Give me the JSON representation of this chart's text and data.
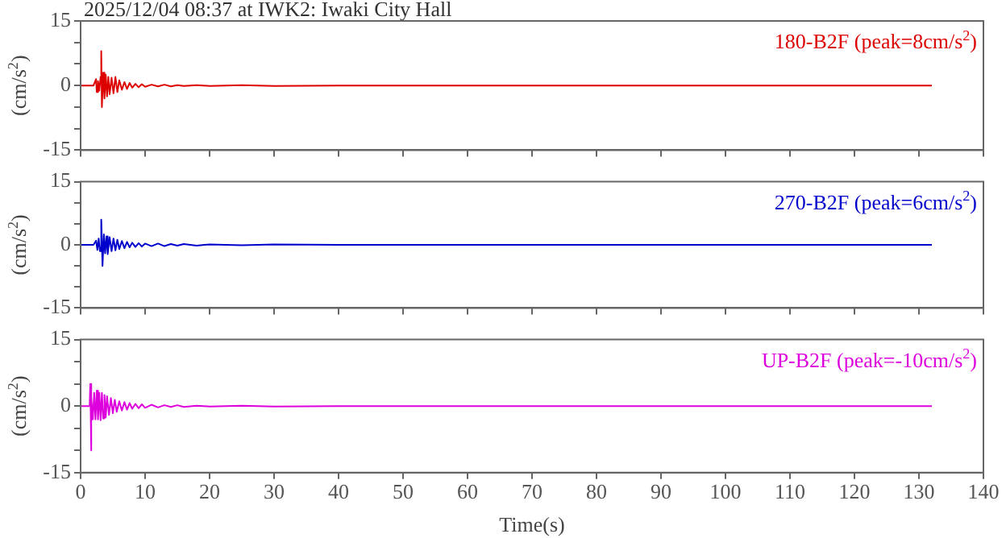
{
  "chart_data": [
    {
      "type": "line",
      "title": "2025/12/04 08:37 at IWK2: Iwaki City Hall",
      "ylabel": "(cm/s$^{2}$)",
      "annotations": [
        "180-B2F (peak=8cm/s$^{2}$)"
      ],
      "tick_labels": "y",
      "xlim": [
        0,
        140
      ],
      "xticks": [
        0,
        10,
        20,
        30,
        40,
        50,
        60,
        70,
        80,
        90,
        100,
        110,
        120,
        130,
        140
      ],
      "ylim": [
        -15,
        15
      ],
      "yticks": [
        -15,
        {
          "value": -10,
          "label": null
        },
        {
          "value": -5,
          "label": null
        },
        0,
        {
          "value": 5,
          "label": null
        },
        {
          "value": 10,
          "label": null
        },
        15
      ],
      "grid": false,
      "legend": false,
      "marker": "none",
      "line_style": "solid",
      "series": [
        {
          "color": "#dd0000",
          "x": [
            0,
            1,
            2,
            2.4,
            2.5,
            2.7,
            2.9,
            3.1,
            3.2,
            3.3,
            3.5,
            3.7,
            3.9,
            4.1,
            4.3,
            4.5,
            4.8,
            5.1,
            5.4,
            5.7,
            6,
            6.4,
            6.8,
            7.2,
            7.6,
            8,
            8.5,
            9,
            9.5,
            10,
            11,
            12,
            13,
            14,
            15,
            16,
            18,
            20,
            25,
            30,
            40,
            132
          ],
          "values": [
            0,
            0,
            0,
            1.5,
            -1.5,
            1,
            -1.2,
            2,
            8,
            -5,
            3,
            -3,
            2.5,
            -2.5,
            2,
            -2,
            1.8,
            -1.8,
            2,
            -1.5,
            1.2,
            -1,
            0.8,
            -0.8,
            0.6,
            -0.5,
            0.4,
            -0.4,
            0.3,
            -0.3,
            0.2,
            -0.2,
            0.2,
            -0.2,
            0.1,
            -0.1,
            0.1,
            -0.1,
            0.1,
            -0.1,
            0,
            0
          ]
        }
      ]
    },
    {
      "type": "line",
      "ylabel": "(cm/s$^{2}$)",
      "annotations": [
        "270-B2F (peak=6cm/s$^{2}$)"
      ],
      "tick_labels": "y",
      "xlim": [
        0,
        140
      ],
      "xticks": [
        0,
        10,
        20,
        30,
        40,
        50,
        60,
        70,
        80,
        90,
        100,
        110,
        120,
        130,
        140
      ],
      "ylim": [
        -15,
        15
      ],
      "yticks": [
        -15,
        {
          "value": -10,
          "label": null
        },
        {
          "value": -5,
          "label": null
        },
        0,
        {
          "value": 5,
          "label": null
        },
        {
          "value": 10,
          "label": null
        },
        15
      ],
      "grid": false,
      "legend": false,
      "marker": "none",
      "line_style": "solid",
      "series": [
        {
          "color": "#0000cc",
          "x": [
            0,
            1,
            2,
            2.4,
            2.6,
            2.8,
            3,
            3.2,
            3.4,
            3.6,
            3.8,
            4,
            4.2,
            4.5,
            4.8,
            5.1,
            5.4,
            5.7,
            6,
            6.4,
            6.8,
            7.2,
            7.6,
            8,
            8.5,
            9,
            9.5,
            10,
            11,
            12,
            13,
            14,
            15,
            16,
            18,
            20,
            25,
            30,
            40,
            132
          ],
          "values": [
            0,
            0,
            0,
            1,
            -1.2,
            1.5,
            -1.5,
            6,
            -5,
            2.5,
            -2,
            2,
            -2.2,
            1.8,
            -1.5,
            1.5,
            -1.3,
            1.2,
            -1,
            0.9,
            -0.8,
            0.7,
            -0.6,
            0.5,
            -0.5,
            0.4,
            -0.4,
            0.3,
            -0.3,
            0.3,
            -0.3,
            0.2,
            -0.2,
            0.2,
            -0.2,
            0.1,
            -0.1,
            0.1,
            0,
            0
          ]
        }
      ]
    },
    {
      "type": "line",
      "xlabel": "Time(s)",
      "ylabel": "(cm/s$^{2}$)",
      "annotations": [
        "UP-B2F (peak=-10cm/s$^{2}$)"
      ],
      "xlim": [
        0,
        140
      ],
      "xticks": [
        0,
        10,
        20,
        30,
        40,
        50,
        60,
        70,
        80,
        90,
        100,
        110,
        120,
        130,
        140
      ],
      "ylim": [
        -15,
        15
      ],
      "yticks": [
        -15,
        {
          "value": -10,
          "label": null
        },
        {
          "value": -5,
          "label": null
        },
        0,
        {
          "value": 5,
          "label": null
        },
        {
          "value": 10,
          "label": null
        },
        15
      ],
      "grid": false,
      "legend": false,
      "marker": "none",
      "line_style": "solid",
      "series": [
        {
          "color": "#dd00dd",
          "x": [
            0,
            1,
            1.4,
            1.5,
            1.6,
            1.7,
            1.9,
            2.1,
            2.3,
            2.5,
            2.7,
            2.9,
            3.1,
            3.3,
            3.5,
            3.7,
            3.9,
            4.1,
            4.4,
            4.7,
            5,
            5.3,
            5.6,
            6,
            6.4,
            6.8,
            7.2,
            7.6,
            8,
            8.5,
            9,
            9.5,
            10,
            11,
            12,
            13,
            14,
            15,
            16,
            18,
            20,
            25,
            30,
            40,
            132
          ],
          "values": [
            0,
            0,
            0,
            5,
            -10,
            2,
            -3,
            3,
            -3,
            3.5,
            -3,
            3,
            -3.2,
            3,
            -2.8,
            2.5,
            -2.5,
            2.2,
            -2,
            1.8,
            -1.6,
            1.4,
            -1.3,
            1.1,
            -1,
            0.9,
            -0.8,
            0.7,
            -0.6,
            0.5,
            -0.5,
            0.4,
            -0.4,
            0.3,
            -0.3,
            0.2,
            -0.2,
            0.2,
            -0.2,
            0.1,
            -0.1,
            0.1,
            -0.1,
            0,
            0
          ]
        }
      ]
    }
  ]
}
